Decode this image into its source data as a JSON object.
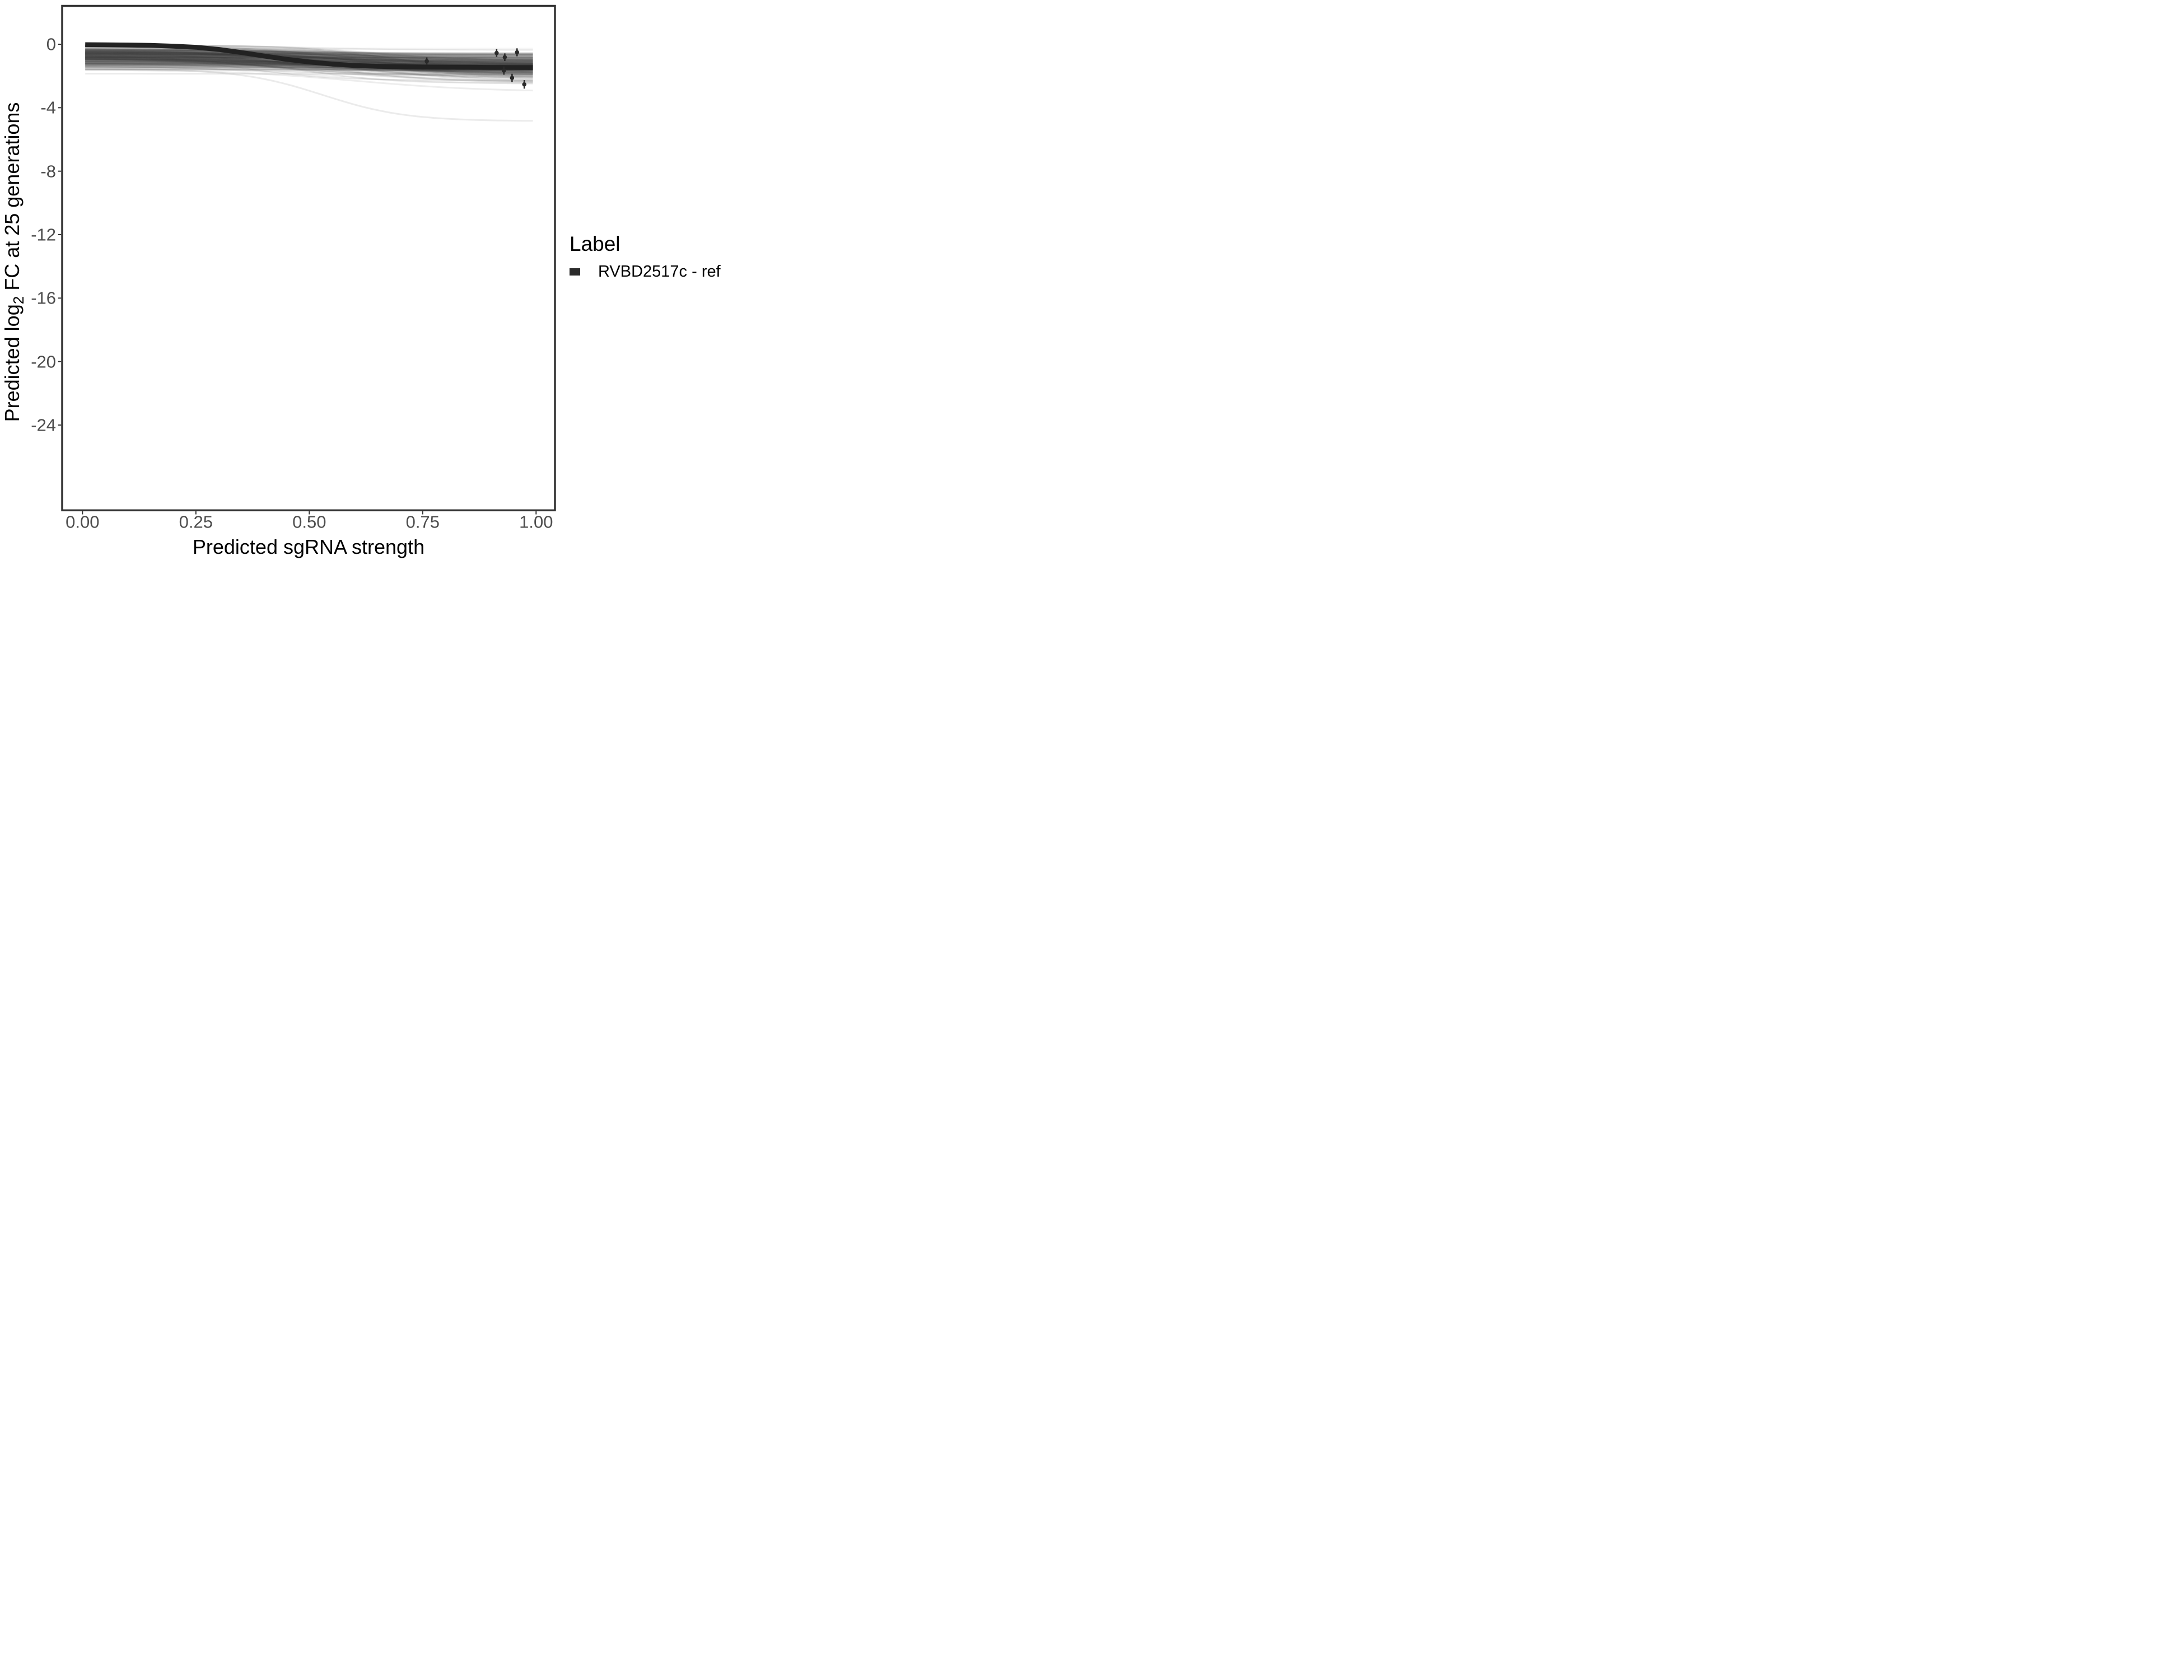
{
  "chart_data": {
    "type": "line",
    "title": "",
    "xlabel": "Predicted sgRNA strength",
    "ylabel_prefix": "Predicted log",
    "ylabel_sub": "2",
    "ylabel_suffix": " FC at 25 generations",
    "xlim": [
      -0.04,
      1.04
    ],
    "ylim": [
      -29.3,
      2.4
    ],
    "grid": "off",
    "legend_position": "right",
    "x_ticks": {
      "values": [
        0.0,
        0.25,
        0.5,
        0.75,
        1.0
      ],
      "labels": [
        "0.00",
        "0.25",
        "0.50",
        "0.75",
        "1.00"
      ]
    },
    "y_ticks": {
      "values": [
        0,
        -4,
        -8,
        -12,
        -16,
        -20,
        -24
      ],
      "labels": [
        "0",
        "-4",
        "-8",
        "-12",
        "-16",
        "-20",
        "-24"
      ]
    },
    "reference_curve": {
      "name": "RVBD2517c - ref",
      "color": "#222222",
      "points": [
        [
          0.006,
          -0.03
        ],
        [
          0.05,
          -0.04
        ],
        [
          0.1,
          -0.05
        ],
        [
          0.15,
          -0.07
        ],
        [
          0.2,
          -0.12
        ],
        [
          0.25,
          -0.19
        ],
        [
          0.3,
          -0.33
        ],
        [
          0.35,
          -0.52
        ],
        [
          0.4,
          -0.74
        ],
        [
          0.45,
          -0.95
        ],
        [
          0.5,
          -1.12
        ],
        [
          0.55,
          -1.25
        ],
        [
          0.6,
          -1.34
        ],
        [
          0.65,
          -1.39
        ],
        [
          0.7,
          -1.42
        ],
        [
          0.75,
          -1.44
        ],
        [
          0.8,
          -1.45
        ],
        [
          0.85,
          -1.455
        ],
        [
          0.9,
          -1.46
        ],
        [
          0.95,
          -1.465
        ],
        [
          0.993,
          -1.47
        ]
      ]
    },
    "observed_points": [
      {
        "x": 0.759,
        "y": -1.07,
        "err": 0.24
      },
      {
        "x": 0.913,
        "y": -0.55,
        "err": 0.25
      },
      {
        "x": 0.931,
        "y": -0.82,
        "err": 0.24
      },
      {
        "x": 0.958,
        "y": -0.51,
        "err": 0.25
      },
      {
        "x": 0.929,
        "y": -1.66,
        "err": 0.26
      },
      {
        "x": 0.947,
        "y": -2.12,
        "err": 0.26
      },
      {
        "x": 0.974,
        "y": -2.53,
        "err": 0.27
      }
    ],
    "ensemble": {
      "description": "posterior sample sigmoid curves",
      "n_lines": 300,
      "seed": 7,
      "x_range": [
        0.006,
        0.993
      ],
      "start_depth_mean": 0.78,
      "start_depth_sd": 0.42,
      "start_depth_range": [
        0.07,
        1.85
      ],
      "end_depth_mean": 1.35,
      "end_depth_sd": 0.5,
      "end_depth_range": [
        0.18,
        2.45
      ],
      "midpoint_range": [
        0.33,
        0.73
      ],
      "steepness_range": [
        5,
        12
      ],
      "color": "#3a3a3a"
    },
    "outlier_curves": [
      {
        "start_depth": 1.55,
        "end_depth": 4.85,
        "midpoint": 0.53,
        "steepness": 11,
        "opacity": 0.1
      },
      {
        "start_depth": 1.6,
        "end_depth": 3.0,
        "midpoint": 0.6,
        "steepness": 7,
        "opacity": 0.09
      },
      {
        "start_depth": 1.3,
        "end_depth": 2.55,
        "midpoint": 0.5,
        "steepness": 6,
        "opacity": 0.07
      }
    ],
    "legend": {
      "title": "Label",
      "items": [
        {
          "label": "RVBD2517c - ref",
          "swatch_color": "#2b2b2b"
        }
      ]
    },
    "colors": {
      "panel_border": "#333333",
      "tick_mark": "#333333",
      "axis_text": "#4d4d4d",
      "axis_title": "#000000",
      "reference_line": "#222222",
      "point": "#2a2a2a",
      "background": "#ffffff"
    }
  }
}
